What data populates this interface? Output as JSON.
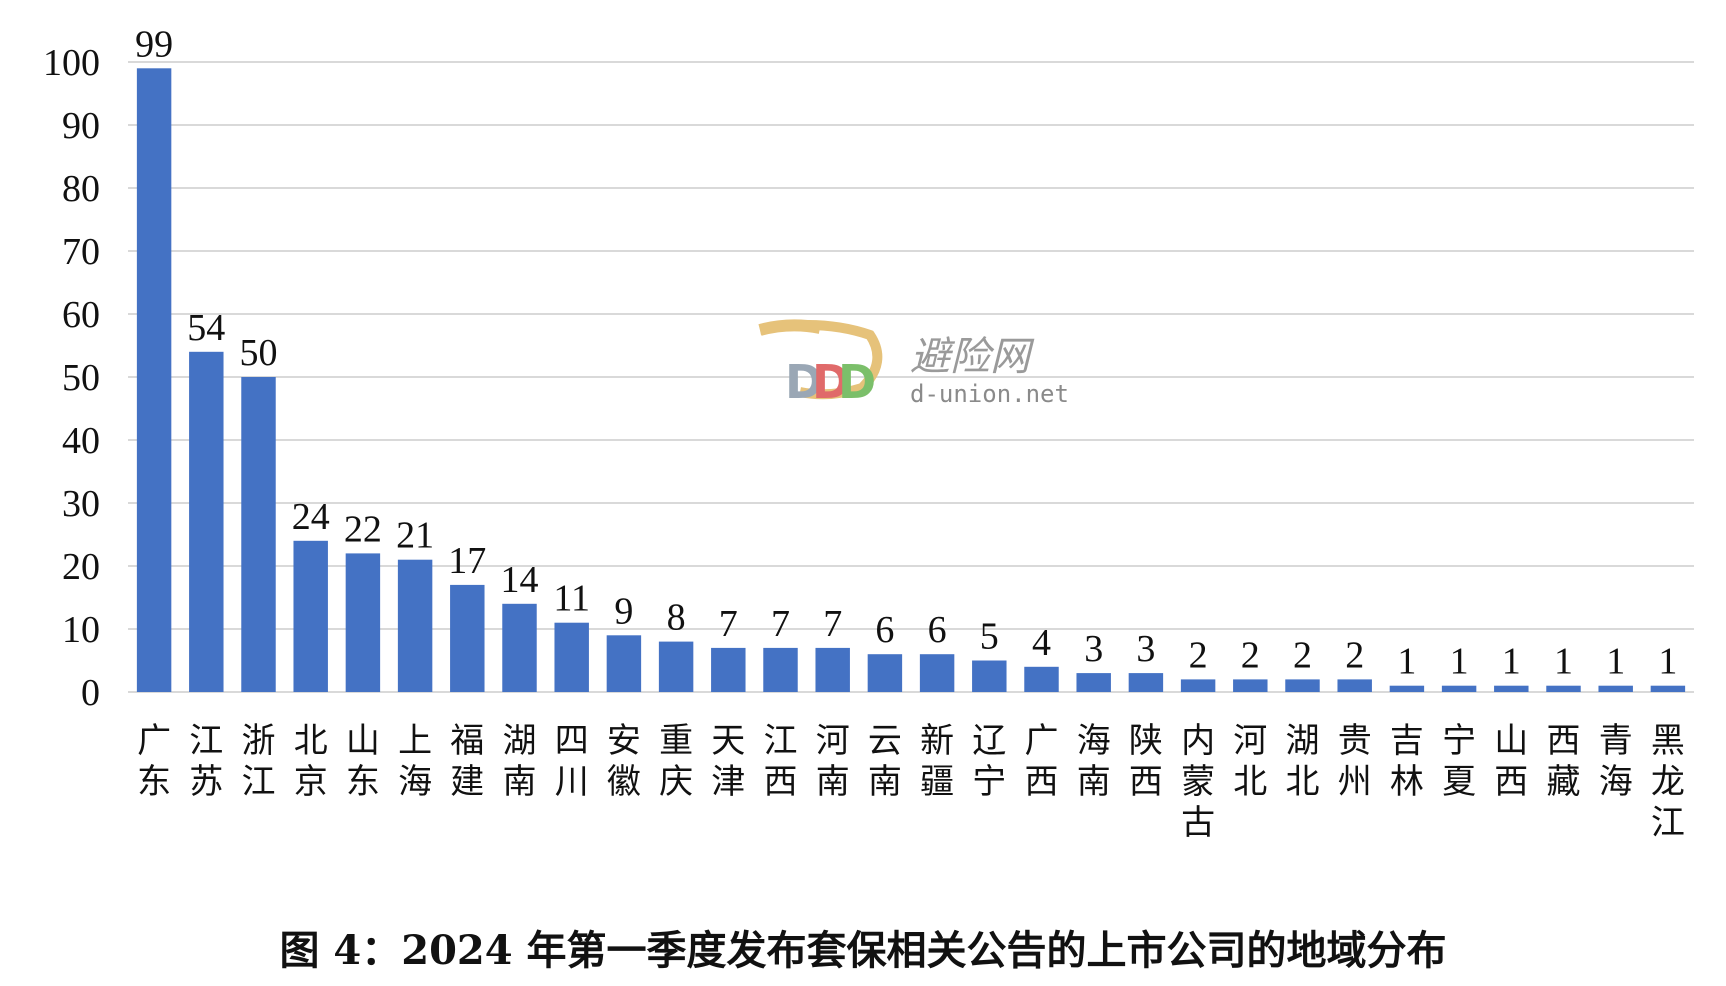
{
  "caption": "图 4：2024 年第一季度发布套保相关公告的上市公司的地域分布",
  "watermark": {
    "name": "避险网",
    "url": "d-union.net",
    "logo_colors": [
      "#e6c27a",
      "#9aa7b5",
      "#e06a6a",
      "#7bbf6a"
    ]
  },
  "chart_data": {
    "type": "bar",
    "categories": [
      "广东",
      "江苏",
      "浙江",
      "北京",
      "山东",
      "上海",
      "福建",
      "湖南",
      "四川",
      "安徽",
      "重庆",
      "天津",
      "江西",
      "河南",
      "云南",
      "新疆",
      "辽宁",
      "广西",
      "海南",
      "陕西",
      "内蒙古",
      "河北",
      "湖北",
      "贵州",
      "吉林",
      "宁夏",
      "山西",
      "西藏",
      "青海",
      "黑龙江"
    ],
    "values": [
      99,
      54,
      50,
      24,
      22,
      21,
      17,
      14,
      11,
      9,
      8,
      7,
      7,
      7,
      6,
      6,
      5,
      4,
      3,
      3,
      2,
      2,
      2,
      2,
      1,
      1,
      1,
      1,
      1,
      1
    ],
    "ylim": [
      0,
      100
    ],
    "yticks": [
      0,
      10,
      20,
      30,
      40,
      50,
      60,
      70,
      80,
      90,
      100
    ],
    "grid": true,
    "bar_color": "#4472c4",
    "grid_color": "#d9d9d9",
    "data_labels": true
  }
}
